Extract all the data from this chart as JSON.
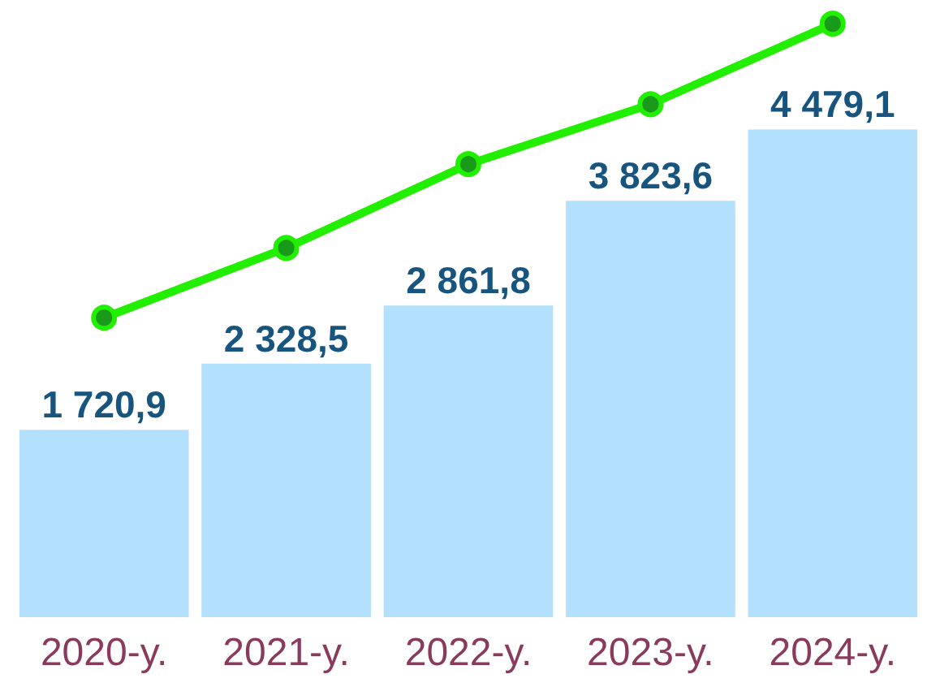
{
  "chart_data": {
    "type": "bar",
    "categories": [
      "2020-y.",
      "2021-y.",
      "2022-y.",
      "2023-y.",
      "2024-y."
    ],
    "series": [
      {
        "color": "#b3e0fc",
        "values": [
          1720.9,
          2328.5,
          2861.8,
          3823.6,
          4479.1
        ],
        "value_labels": [
          "1 720,9",
          "2 328,5",
          "2 861,8",
          "3 823,6",
          "4 479,1"
        ]
      },
      {
        "type": "line",
        "color": "#22ee00",
        "values": [
          2750,
          3390,
          4160,
          4710,
          5450
        ]
      }
    ],
    "tick_labels": "x",
    "marker": "circle"
  }
}
